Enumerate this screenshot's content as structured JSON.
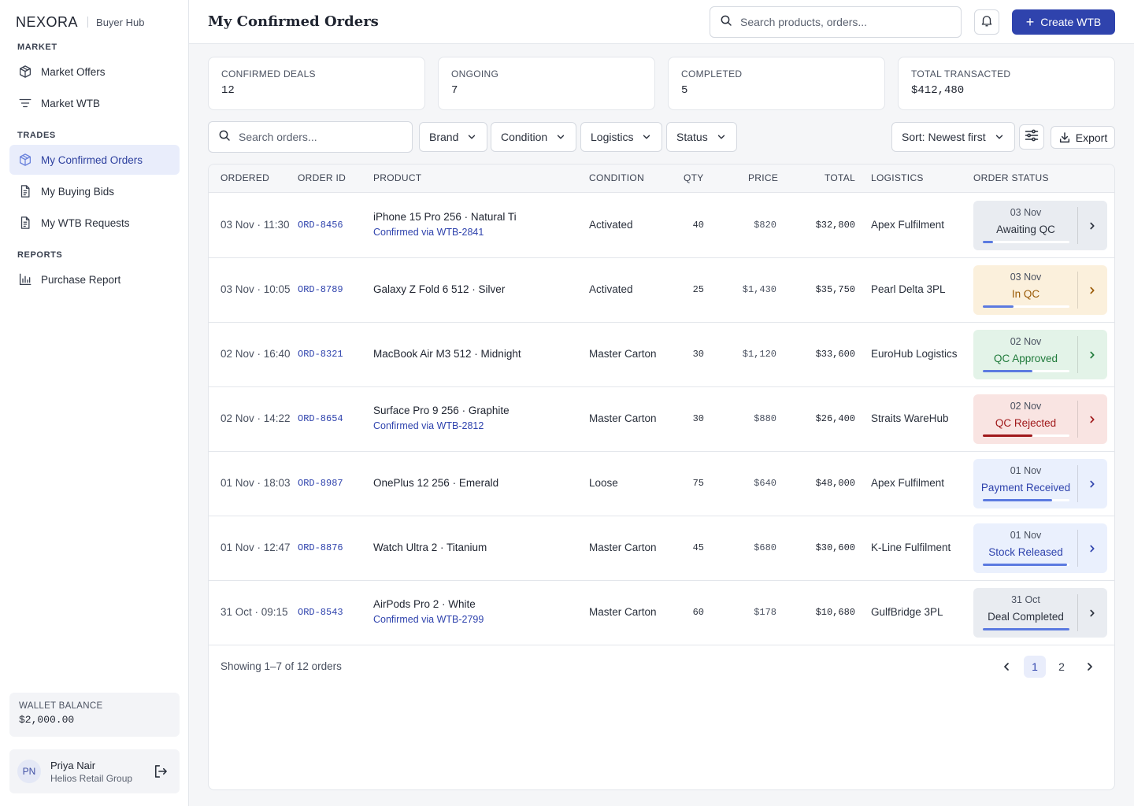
{
  "brand": {
    "logo": "NEXORA",
    "hub": "Buyer Hub"
  },
  "sidebar": {
    "sections": [
      {
        "title": "MARKET"
      },
      {
        "title": "TRADES"
      },
      {
        "title": "REPORTS"
      }
    ],
    "items": [
      {
        "label": "Market Offers",
        "icon": "cube-icon"
      },
      {
        "label": "Market WTB",
        "icon": "filter-lines-icon"
      },
      {
        "label": "My Confirmed Orders",
        "icon": "cube-icon",
        "active": true
      },
      {
        "label": "My Buying Bids",
        "icon": "document-icon"
      },
      {
        "label": "My WTB Requests",
        "icon": "document-icon"
      },
      {
        "label": "Purchase Report",
        "icon": "bar-chart-icon"
      }
    ],
    "wallet": {
      "label": "WALLET BALANCE",
      "value": "$2,000.00"
    },
    "user": {
      "initials": "PN",
      "name": "Priya Nair",
      "org": "Helios Retail Group"
    }
  },
  "header": {
    "title": "My Confirmed Orders",
    "search_placeholder": "Search products, orders...",
    "create_label": "Create WTB"
  },
  "stats": [
    {
      "label": "CONFIRMED DEALS",
      "value": "12"
    },
    {
      "label": "ONGOING",
      "value": "7"
    },
    {
      "label": "COMPLETED",
      "value": "5"
    },
    {
      "label": "TOTAL TRANSACTED",
      "value": "$412,480"
    }
  ],
  "filters": {
    "search_placeholder": "Search orders...",
    "brand": "Brand",
    "condition": "Condition",
    "logistics": "Logistics",
    "status": "Status",
    "sort": "Sort: Newest first",
    "export": "Export"
  },
  "table": {
    "columns": [
      "ORDERED",
      "ORDER ID",
      "PRODUCT",
      "CONDITION",
      "QTY",
      "PRICE",
      "TOTAL",
      "LOGISTICS",
      "ORDER STATUS"
    ],
    "rows": [
      {
        "ordered": "03 Nov · 11:30",
        "id": "ORD-8456",
        "product": "iPhone 15 Pro 256 · Natural Ti",
        "via": "Confirmed via WTB-2841",
        "condition": "Activated",
        "qty": "40",
        "price": "$820",
        "total": "$32,800",
        "logistics": "Apex Fulfilment",
        "status_date": "03 Nov",
        "status": "Awaiting QC",
        "progress": 0.12,
        "bg": "#e9ecf1",
        "fg": "#2a303c",
        "bar": "#5b7ae0"
      },
      {
        "ordered": "03 Nov · 10:05",
        "id": "ORD-8789",
        "product": "Galaxy Z Fold 6 512 · Silver",
        "via": "",
        "condition": "Activated",
        "qty": "25",
        "price": "$1,430",
        "total": "$35,750",
        "logistics": "Pearl Delta 3PL",
        "status_date": "03 Nov",
        "status": "In QC",
        "progress": 0.35,
        "bg": "#fbf0dc",
        "fg": "#9a5a06",
        "bar": "#5b7ae0"
      },
      {
        "ordered": "02 Nov · 16:40",
        "id": "ORD-8321",
        "product": "MacBook Air M3 512 · Midnight",
        "via": "",
        "condition": "Master Carton",
        "qty": "30",
        "price": "$1,120",
        "total": "$33,600",
        "logistics": "EuroHub Logistics",
        "status_date": "02 Nov",
        "status": "QC Approved",
        "progress": 0.57,
        "bg": "#e3f3e8",
        "fg": "#1f7a3a",
        "bar": "#5b7ae0"
      },
      {
        "ordered": "02 Nov · 14:22",
        "id": "ORD-8654",
        "product": "Surface Pro 9 256 · Graphite",
        "via": "Confirmed via WTB-2812",
        "condition": "Master Carton",
        "qty": "30",
        "price": "$880",
        "total": "$26,400",
        "logistics": "Straits WareHub",
        "status_date": "02 Nov",
        "status": "QC Rejected",
        "progress": 0.57,
        "bg": "#f9e4e2",
        "fg": "#a0191b",
        "bar": "#a0191b"
      },
      {
        "ordered": "01 Nov · 18:03",
        "id": "ORD-8987",
        "product": "OnePlus 12 256 · Emerald",
        "via": "",
        "condition": "Loose",
        "qty": "75",
        "price": "$640",
        "total": "$48,000",
        "logistics": "Apex Fulfilment",
        "status_date": "01 Nov",
        "status": "Payment Received",
        "progress": 0.8,
        "bg": "#eaf0fd",
        "fg": "#2f43ad",
        "bar": "#5b7ae0"
      },
      {
        "ordered": "01 Nov · 12:47",
        "id": "ORD-8876",
        "product": "Watch Ultra 2 · Titanium",
        "via": "",
        "condition": "Master Carton",
        "qty": "45",
        "price": "$680",
        "total": "$30,600",
        "logistics": "K-Line Fulfilment",
        "status_date": "01 Nov",
        "status": "Stock Released",
        "progress": 0.97,
        "bg": "#eaf0fd",
        "fg": "#2f43ad",
        "bar": "#5b7ae0"
      },
      {
        "ordered": "31 Oct · 09:15",
        "id": "ORD-8543",
        "product": "AirPods Pro 2 · White",
        "via": "Confirmed via WTB-2799",
        "condition": "Master Carton",
        "qty": "60",
        "price": "$178",
        "total": "$10,680",
        "logistics": "GulfBridge 3PL",
        "status_date": "31 Oct",
        "status": "Deal Completed",
        "progress": 1.0,
        "bg": "#e9ecf1",
        "fg": "#2a303c",
        "bar": "#5b7ae0"
      }
    ]
  },
  "footer": {
    "showing": "Showing 1–7 of 12 orders",
    "pages": [
      "1",
      "2"
    ],
    "current_page": "1"
  }
}
